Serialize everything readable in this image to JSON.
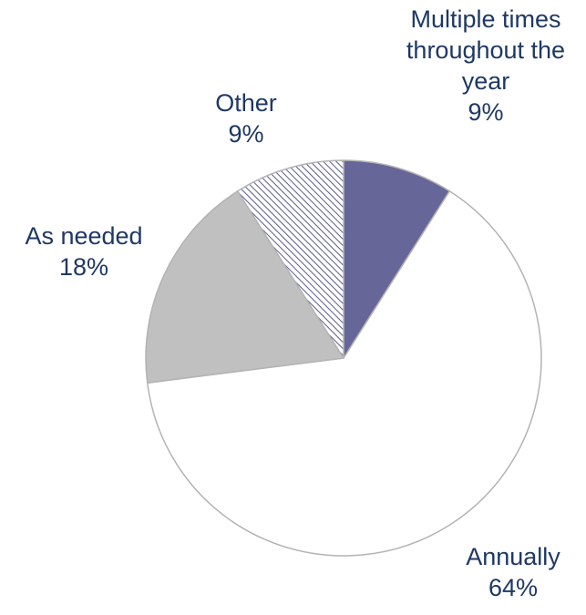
{
  "chart_data": {
    "type": "pie",
    "title": "",
    "slices": [
      {
        "name": "Multiple times throughout the year",
        "label_lines": [
          "Multiple times",
          "throughout the",
          "year"
        ],
        "value": 9,
        "value_label": "9%",
        "color": "#666699"
      },
      {
        "name": "Annually",
        "label_lines": [
          "Annually"
        ],
        "value": 64,
        "value_label": "64%",
        "color": "#ffffff"
      },
      {
        "name": "As needed",
        "label_lines": [
          "As needed"
        ],
        "value": 18,
        "value_label": "18%",
        "color": "#c0c0c0"
      },
      {
        "name": "Other",
        "label_lines": [
          "Other"
        ],
        "value": 9,
        "value_label": "9%",
        "color": "hatched"
      }
    ],
    "legend": "none",
    "label_color": "#1f3864",
    "border_color": "#b3b3b3"
  }
}
